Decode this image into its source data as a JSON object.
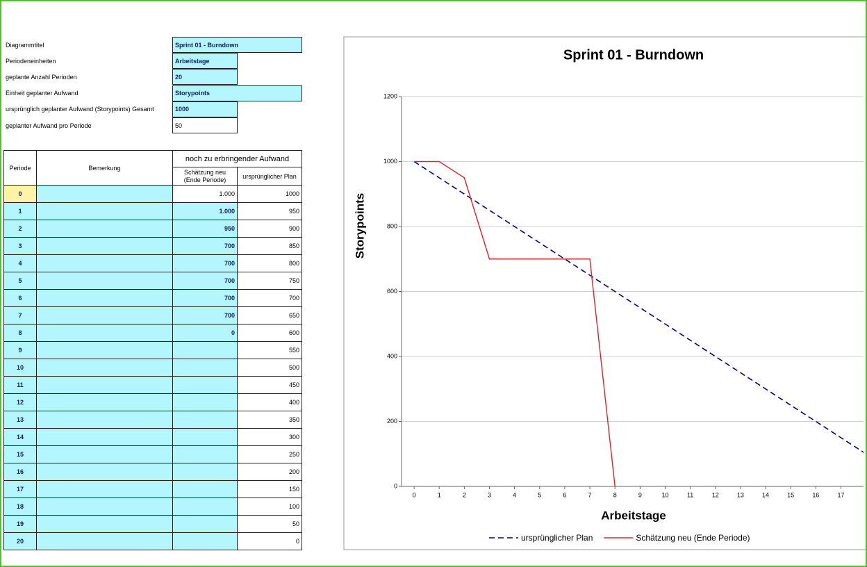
{
  "settings": [
    {
      "label": "Diagrammtitel",
      "value": "Sprint 01 - Burndown"
    },
    {
      "label": "Periodeneinheiten",
      "value": "Arbeitstage"
    },
    {
      "label": "geplante Anzahl Perioden",
      "value": "20"
    },
    {
      "label": "Einheit geplanter Aufwand",
      "value": "Storypoints"
    },
    {
      "label": "ursprünglich geplanter Aufwand (Storypoints) Gesamt",
      "value": "1000"
    },
    {
      "label": "geplanter Aufwand pro Periode",
      "value": "50"
    }
  ],
  "table": {
    "group_header": "noch zu erbringender Aufwand",
    "headers": [
      "Periode",
      "Bemerkung",
      "Schätzung neu (Ende Periode)",
      "ursprünglicher Plan"
    ],
    "rows": [
      {
        "periode": "0",
        "schaetzung": "1.000",
        "plan": "1000"
      },
      {
        "periode": "1",
        "schaetzung": "1.000",
        "plan": "950"
      },
      {
        "periode": "2",
        "schaetzung": "950",
        "plan": "900"
      },
      {
        "periode": "3",
        "schaetzung": "700",
        "plan": "850"
      },
      {
        "periode": "4",
        "schaetzung": "700",
        "plan": "800"
      },
      {
        "periode": "5",
        "schaetzung": "700",
        "plan": "750"
      },
      {
        "periode": "6",
        "schaetzung": "700",
        "plan": "700"
      },
      {
        "periode": "7",
        "schaetzung": "700",
        "plan": "650"
      },
      {
        "periode": "8",
        "schaetzung": "0",
        "plan": "600"
      },
      {
        "periode": "9",
        "plan": "550"
      },
      {
        "periode": "10",
        "plan": "500"
      },
      {
        "periode": "11",
        "plan": "450"
      },
      {
        "periode": "12",
        "plan": "400"
      },
      {
        "periode": "13",
        "plan": "350"
      },
      {
        "periode": "14",
        "plan": "300"
      },
      {
        "periode": "15",
        "plan": "250"
      },
      {
        "periode": "16",
        "plan": "200"
      },
      {
        "periode": "17",
        "plan": "150"
      },
      {
        "periode": "18",
        "plan": "100"
      },
      {
        "periode": "19",
        "plan": "50"
      },
      {
        "periode": "20",
        "plan": "0"
      }
    ]
  },
  "chart_data": {
    "type": "line",
    "title": "Sprint 01 - Burndown",
    "xlabel": "Arbeitstage",
    "ylabel": "Storypoints",
    "x": [
      0,
      1,
      2,
      3,
      4,
      5,
      6,
      7,
      8,
      9,
      10,
      11,
      12,
      13,
      14,
      15,
      16,
      17,
      18
    ],
    "xlim": [
      -0.5,
      17.9
    ],
    "xticks": [
      0,
      1,
      2,
      3,
      4,
      5,
      6,
      7,
      8,
      9,
      10,
      11,
      12,
      13,
      14,
      15,
      16,
      17
    ],
    "ylim": [
      0,
      1200
    ],
    "yticks": [
      0,
      200,
      400,
      600,
      800,
      1000,
      1200
    ],
    "grid": true,
    "legend": "bottom",
    "series": [
      {
        "name": "ursprünglicher Plan",
        "color": "#000080",
        "linestyle": "dashed",
        "values": [
          1000,
          950,
          900,
          850,
          800,
          750,
          700,
          650,
          600,
          550,
          500,
          450,
          400,
          350,
          300,
          250,
          200,
          150,
          100
        ]
      },
      {
        "name": "Schätzung neu (Ende Periode)",
        "color": "#e0202a",
        "linestyle": "solid",
        "values": [
          1000,
          1000,
          950,
          700,
          700,
          700,
          700,
          700,
          0,
          null,
          null,
          null,
          null,
          null,
          null,
          null,
          null,
          null,
          null
        ]
      }
    ]
  }
}
